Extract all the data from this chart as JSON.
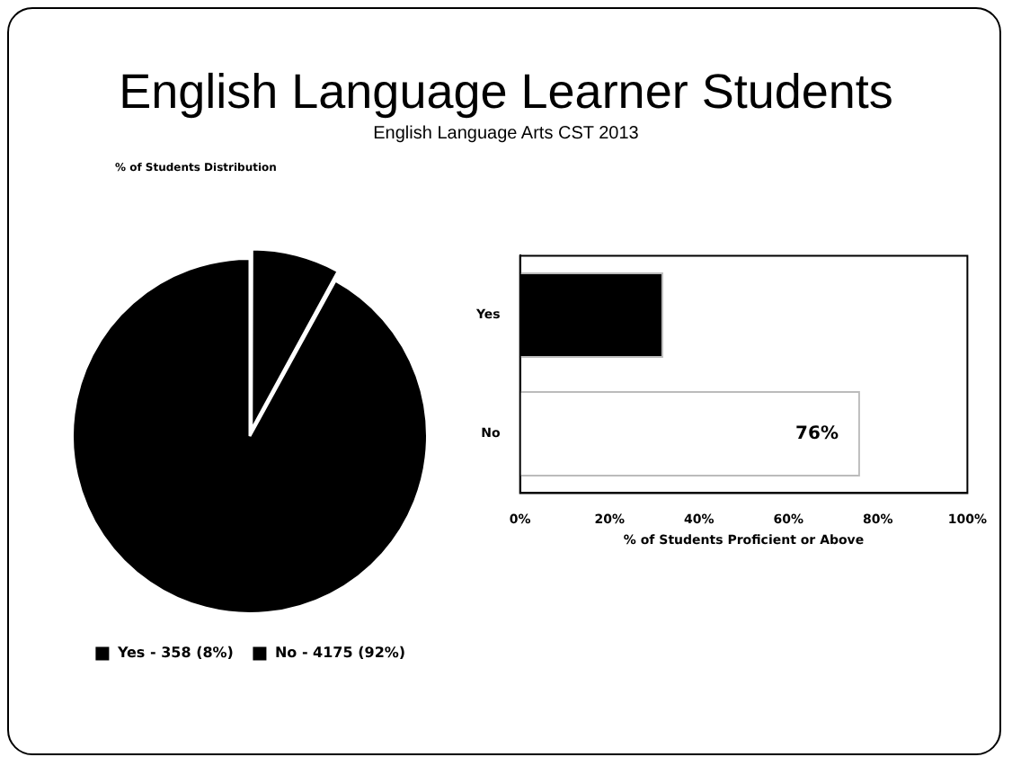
{
  "chart_data": [
    {
      "type": "pie",
      "title": "English Language Learner Students",
      "subtitle": "English Language Arts CST 2013",
      "annotations": [
        "% of Students Distribution"
      ],
      "categories": [
        "Yes - 358 (8%)",
        "No - 4175 (92%)"
      ],
      "values": [
        8,
        92
      ],
      "colors": [
        "#000000",
        "#000000"
      ],
      "legend": "bottom"
    },
    {
      "type": "bar",
      "orientation": "horizontal",
      "categories": [
        "Yes",
        "No"
      ],
      "values": [
        32,
        76
      ],
      "colors": [
        "#000000",
        "#ffffff"
      ],
      "value_labels": [
        null,
        "76%"
      ],
      "xlabel": "% of Students Proficient or Above",
      "xlim": [
        0,
        100
      ],
      "xticks": [
        {
          "value": 0,
          "label": "0%"
        },
        {
          "value": 20,
          "label": "20%"
        },
        {
          "value": 40,
          "label": "40%"
        },
        {
          "value": 60,
          "label": "60%"
        },
        {
          "value": 80,
          "label": "80%"
        },
        {
          "value": 100,
          "label": "100%"
        }
      ],
      "grid": false
    }
  ]
}
